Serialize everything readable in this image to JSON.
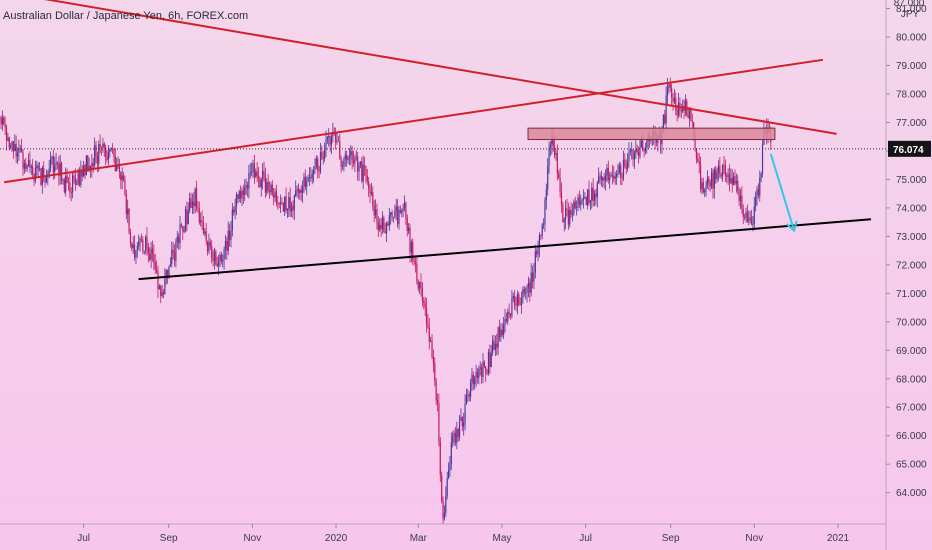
{
  "chart_data": {
    "type": "candlestick",
    "title": "Australian Dollar / Japanese Yen, 6h, FOREX.com",
    "currency": "JPY",
    "y_top_label": "87.000",
    "ylim": [
      62.9,
      81.3
    ],
    "y_ticks": [
      "64.000",
      "65.000",
      "66.000",
      "67.000",
      "68.000",
      "69.000",
      "70.000",
      "71.000",
      "72.000",
      "73.000",
      "74.000",
      "75.000",
      "76.000",
      "77.000",
      "78.000",
      "79.000",
      "80.000",
      "81.000"
    ],
    "x_ticks": [
      {
        "label": "Jul",
        "date": "2019-07-01"
      },
      {
        "label": "Sep",
        "date": "2019-09-01"
      },
      {
        "label": "Nov",
        "date": "2019-11-01"
      },
      {
        "label": "2020",
        "date": "2020-01-01"
      },
      {
        "label": "Mar",
        "date": "2020-03-01"
      },
      {
        "label": "May",
        "date": "2020-05-01"
      },
      {
        "label": "Jul",
        "date": "2020-07-01"
      },
      {
        "label": "Sep",
        "date": "2020-09-01"
      },
      {
        "label": "Nov",
        "date": "2020-11-01"
      },
      {
        "label": "2021",
        "date": "2021-01-01"
      }
    ],
    "xlim": [
      "2019-05-01",
      "2021-02-05"
    ],
    "last_price": "76.074",
    "price_path": [
      [
        "2019-05-01",
        77.2
      ],
      [
        "2019-05-10",
        76.2
      ],
      [
        "2019-05-20",
        75.6
      ],
      [
        "2019-05-31",
        75.0
      ],
      [
        "2019-06-10",
        75.6
      ],
      [
        "2019-06-20",
        74.6
      ],
      [
        "2019-07-01",
        75.4
      ],
      [
        "2019-07-10",
        75.9
      ],
      [
        "2019-07-20",
        76.0
      ],
      [
        "2019-07-31",
        74.6
      ],
      [
        "2019-08-05",
        72.3
      ],
      [
        "2019-08-10",
        73.0
      ],
      [
        "2019-08-20",
        72.3
      ],
      [
        "2019-08-26",
        71.0
      ],
      [
        "2019-09-01",
        71.8
      ],
      [
        "2019-09-10",
        73.3
      ],
      [
        "2019-09-20",
        74.4
      ],
      [
        "2019-10-01",
        72.3
      ],
      [
        "2019-10-10",
        72.0
      ],
      [
        "2019-10-20",
        74.2
      ],
      [
        "2019-11-01",
        75.3
      ],
      [
        "2019-11-10",
        74.9
      ],
      [
        "2019-11-20",
        74.0
      ],
      [
        "2019-12-01",
        74.3
      ],
      [
        "2019-12-10",
        75.0
      ],
      [
        "2019-12-20",
        75.6
      ],
      [
        "2019-12-31",
        76.6
      ],
      [
        "2020-01-05",
        75.5
      ],
      [
        "2020-01-15",
        75.7
      ],
      [
        "2020-01-25",
        74.8
      ],
      [
        "2020-02-01",
        73.3
      ],
      [
        "2020-02-10",
        73.6
      ],
      [
        "2020-02-20",
        73.8
      ],
      [
        "2020-02-29",
        71.5
      ],
      [
        "2020-03-05",
        70.8
      ],
      [
        "2020-03-10",
        69.0
      ],
      [
        "2020-03-15",
        67.0
      ],
      [
        "2020-03-19",
        63.0
      ],
      [
        "2020-03-25",
        65.5
      ],
      [
        "2020-04-01",
        66.3
      ],
      [
        "2020-04-10",
        68.0
      ],
      [
        "2020-04-20",
        68.5
      ],
      [
        "2020-05-01",
        69.8
      ],
      [
        "2020-05-10",
        70.6
      ],
      [
        "2020-05-20",
        71.0
      ],
      [
        "2020-05-31",
        73.4
      ],
      [
        "2020-06-05",
        76.6
      ],
      [
        "2020-06-10",
        75.5
      ],
      [
        "2020-06-15",
        73.6
      ],
      [
        "2020-06-25",
        74.0
      ],
      [
        "2020-07-05",
        74.5
      ],
      [
        "2020-07-15",
        75.2
      ],
      [
        "2020-07-25",
        75.2
      ],
      [
        "2020-08-05",
        75.8
      ],
      [
        "2020-08-15",
        76.2
      ],
      [
        "2020-08-25",
        76.5
      ],
      [
        "2020-08-31",
        78.3
      ],
      [
        "2020-09-05",
        77.5
      ],
      [
        "2020-09-15",
        77.5
      ],
      [
        "2020-09-20",
        75.6
      ],
      [
        "2020-09-25",
        74.4
      ],
      [
        "2020-10-01",
        75.0
      ],
      [
        "2020-10-10",
        75.4
      ],
      [
        "2020-10-20",
        74.5
      ],
      [
        "2020-10-30",
        73.3
      ],
      [
        "2020-11-05",
        74.8
      ],
      [
        "2020-11-09",
        77.0
      ],
      [
        "2020-11-13",
        76.1
      ]
    ],
    "annotations": [
      {
        "type": "trendline",
        "color": "#d0202a",
        "from": [
          "2019-05-01",
          81.6
        ],
        "to": [
          "2020-12-31",
          76.6
        ]
      },
      {
        "type": "trendline",
        "color": "#d0202a",
        "from": [
          "2019-05-04",
          74.9
        ],
        "to": [
          "2020-12-21",
          79.2
        ]
      },
      {
        "type": "trendline",
        "color": "#000000",
        "from": [
          "2019-08-10",
          71.5
        ],
        "to": [
          "2021-01-25",
          73.6
        ]
      },
      {
        "type": "zone",
        "color": "#d98a9a",
        "from": [
          "2020-05-20",
          76.8
        ],
        "to": [
          "2020-11-16",
          76.4
        ]
      },
      {
        "type": "arrow",
        "color": "#39c6e2",
        "from": [
          "2020-11-13",
          75.9
        ],
        "to": [
          "2020-11-30",
          73.2
        ]
      }
    ]
  }
}
